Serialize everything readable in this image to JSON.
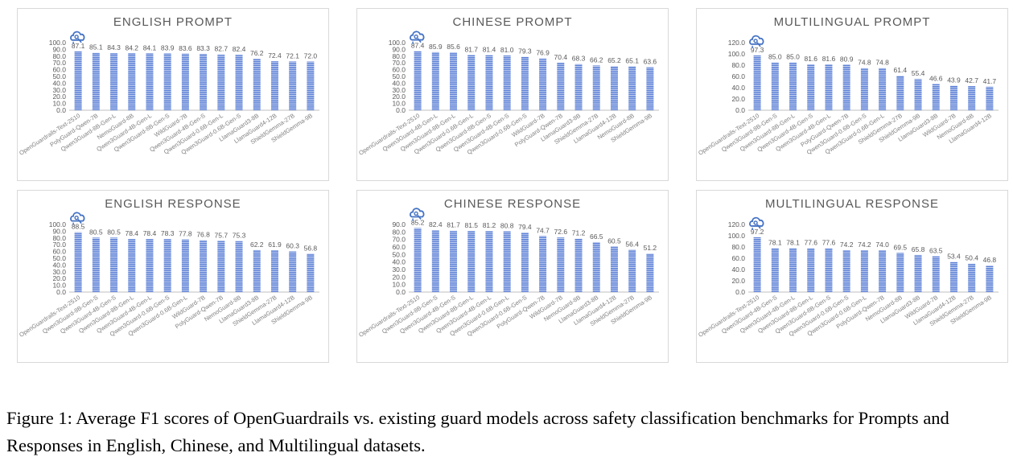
{
  "colors": {
    "bar": "#5B7FD6",
    "bar_stripe": "#ffffff",
    "axis": "#bfbfbf",
    "text": "#595959",
    "label": "#7f7f7f",
    "logo": "#4472C4"
  },
  "logo_icon": "opengardrails-logo-icon",
  "caption": "Figure 1: Average F1 scores of OpenGuardrails vs. existing guard models across safety classification benchmarks for Prompts and Responses in English, Chinese, and Multilingual datasets.",
  "chart_data": [
    {
      "type": "bar",
      "title": "ENGLISH PROMPT",
      "ylim": [
        0,
        100
      ],
      "yticks": [
        "100.0",
        "90.0",
        "80.0",
        "70.0",
        "60.0",
        "50.0",
        "40.0",
        "30.0",
        "20.0",
        "10.0",
        "0.0"
      ],
      "categories": [
        "OpenGuardrails-Text-2510",
        "PolyGuard-Qwen-7B",
        "Qwen3Guard-8B-Gen-L",
        "NemoGuard-8B",
        "Qwen3Guard-4B-Gen-L",
        "Qwen3Guard-8B-Gen-S",
        "WildGuard-7B",
        "Qwen3Guard-4B-Gen-S",
        "Qwen3Guard-0.6B-Gen-L",
        "Qwen3Guard-0.6B-Gen-S",
        "LlamaGuard3-8B",
        "LlamaGuard4-12B",
        "ShieldGemma-27B",
        "ShieldGemma-9B"
      ],
      "values": [
        87.1,
        85.1,
        84.3,
        84.2,
        84.1,
        83.9,
        83.6,
        83.3,
        82.7,
        82.4,
        76.2,
        72.4,
        72.1,
        72.0
      ],
      "labels": [
        "87.1",
        "85.1",
        "84.3",
        "84.2",
        "84.1",
        "83.9",
        "83.6",
        "83.3",
        "82.7",
        "82.4",
        "76.2",
        "72.4",
        "72.1",
        "72.0"
      ]
    },
    {
      "type": "bar",
      "title": "CHINESE PROMPT",
      "ylim": [
        0,
        100
      ],
      "yticks": [
        "100.0",
        "90.0",
        "80.0",
        "70.0",
        "60.0",
        "50.0",
        "40.0",
        "30.0",
        "20.0",
        "10.0",
        "0.0"
      ],
      "categories": [
        "OpenGuardrails-Text-2510",
        "Qwen3Guard-4B-Gen-L",
        "Qwen3Guard-8B-Gen-L",
        "Qwen3Guard-0.6B-Gen-L",
        "Qwen3Guard-8B-Gen-S",
        "Qwen3Guard-4B-Gen-S",
        "Qwen3Guard-0.6B-Gen-S",
        "WildGuard-7B",
        "PolyGuard-Qwen-7B",
        "LlamaGuard3-8B",
        "ShieldGemma-27B",
        "LlamaGuard4-12B",
        "NemoGuard-8B",
        "ShieldGemma-9B"
      ],
      "values": [
        87.4,
        85.9,
        85.6,
        81.7,
        81.4,
        81.0,
        79.3,
        76.9,
        70.4,
        68.3,
        66.2,
        65.2,
        65.1,
        63.6
      ],
      "labels": [
        "87.4",
        "85.9",
        "85.6",
        "81.7",
        "81.4",
        "81.0",
        "79.3",
        "76.9",
        "70.4",
        "68.3",
        "66.2",
        "65.2",
        "65.1",
        "63.6"
      ]
    },
    {
      "type": "bar",
      "title": "MULTILINGUAL PROMPT",
      "ylim": [
        0,
        120
      ],
      "yticks": [
        "120.0",
        "100.0",
        "80.0",
        "60.0",
        "40.0",
        "20.0",
        "0.0"
      ],
      "categories": [
        "OpenGuardrails-Text-2510",
        "Qwen3Guard-8B-Gen-S",
        "Qwen3Guard-8B-Gen-L",
        "Qwen3Guard-4B-Gen-S",
        "Qwen3Guard-4B-Gen-L",
        "PolyGuard-Qwen-7B",
        "Qwen3Guard-0.6B-Gen-S",
        "Qwen3Guard-0.6B-Gen-L",
        "ShieldGemma-27B",
        "ShieldGemma-9B",
        "LlamaGuard3-8B",
        "WildGuard-7B",
        "NemoGuard-8B",
        "LlamaGuard4-12B"
      ],
      "values": [
        97.3,
        85.0,
        85.0,
        81.6,
        81.6,
        80.9,
        74.8,
        74.8,
        61.4,
        55.4,
        46.6,
        43.9,
        42.7,
        41.7
      ],
      "labels": [
        "97.3",
        "85.0",
        "85.0",
        "81.6",
        "81.6",
        "80.9",
        "74.8",
        "74.8",
        "61.4",
        "55.4",
        "46.6",
        "43.9",
        "42.7",
        "41.7"
      ]
    },
    {
      "type": "bar",
      "title": "ENGLISH RESPONSE",
      "ylim": [
        0,
        100
      ],
      "yticks": [
        "100.0",
        "90.0",
        "80.0",
        "70.0",
        "60.0",
        "50.0",
        "40.0",
        "30.0",
        "20.0",
        "10.0",
        "0.0"
      ],
      "categories": [
        "OpenGuardrails-Text-2510",
        "Qwen3Guard-8B-Gen-S",
        "Qwen3Guard-4B-Gen-S",
        "Qwen3Guard-8B-Gen-L",
        "Qwen3Guard-4B-Gen-L",
        "Qwen3Guard-0.6B-Gen-S",
        "Qwen3Guard-0.6B-Gen-L",
        "WildGuard-7B",
        "PolyGuard-Qwen-7B",
        "NemoGuard-8B",
        "LlamaGuard3-8B",
        "ShieldGemma-27B",
        "LlamaGuard4-12B",
        "ShieldGemma-9B"
      ],
      "values": [
        88.5,
        80.5,
        80.5,
        78.4,
        78.4,
        78.3,
        77.8,
        76.8,
        75.7,
        75.3,
        62.2,
        61.9,
        60.3,
        56.8
      ],
      "labels": [
        "88.5",
        "80.5",
        "80.5",
        "78.4",
        "78.4",
        "78.3",
        "77.8",
        "76.8",
        "75.7",
        "75.3",
        "62.2",
        "61.9",
        "60.3",
        "56.8"
      ]
    },
    {
      "type": "bar",
      "title": "CHINESE RESPONSE",
      "ylim": [
        0,
        90
      ],
      "yticks": [
        "90.0",
        "80.0",
        "70.0",
        "60.0",
        "50.0",
        "40.0",
        "30.0",
        "20.0",
        "10.0",
        "0.0"
      ],
      "categories": [
        "OpenGuardrails-Text-2510",
        "Qwen3Guard-8B-Gen-S",
        "Qwen3Guard-4B-Gen-S",
        "Qwen3Guard-8B-Gen-L",
        "Qwen3Guard-4B-Gen-L",
        "Qwen3Guard-0.6B-Gen-L",
        "Qwen3Guard-0.6B-Gen-S",
        "PolyGuard-Qwen-7B",
        "WildGuard-7B",
        "NemoGuard-8B",
        "LlamaGuard3-8B",
        "LlamaGuard4-12B",
        "ShieldGemma-27B",
        "ShieldGemma-9B"
      ],
      "values": [
        85.2,
        82.4,
        81.7,
        81.5,
        81.2,
        80.8,
        79.4,
        74.7,
        72.6,
        71.2,
        66.5,
        60.5,
        56.4,
        51.2
      ],
      "labels": [
        "85.2",
        "82.4",
        "81.7",
        "81.5",
        "81.2",
        "80.8",
        "79.4",
        "74.7",
        "72.6",
        "71.2",
        "66.5",
        "60.5",
        "56.4",
        "51.2"
      ]
    },
    {
      "type": "bar",
      "title": "MULTILINGUAL RESPONSE",
      "ylim": [
        0,
        120
      ],
      "yticks": [
        "120.0",
        "100.0",
        "80.0",
        "60.0",
        "40.0",
        "20.0",
        "0.0"
      ],
      "categories": [
        "OpenGuardrails-Text-2510",
        "Qwen3Guard-4B-Gen-S",
        "Qwen3Guard-4B-Gen-L",
        "Qwen3Guard-8B-Gen-L",
        "Qwen3Guard-8B-Gen-S",
        "Qwen3Guard-0.6B-Gen-S",
        "Qwen3Guard-0.6B-Gen-L",
        "PolyGuard-Qwen-7B",
        "NemoGuard-8B",
        "LlamaGuard3-8B",
        "WildGuard-7B",
        "LlamaGuard4-12B",
        "ShieldGemma-27B",
        "ShieldGemma-9B"
      ],
      "values": [
        97.2,
        78.1,
        78.1,
        77.6,
        77.6,
        74.2,
        74.2,
        74.0,
        69.5,
        65.8,
        63.5,
        53.4,
        50.4,
        46.8
      ],
      "labels": [
        "97.2",
        "78.1",
        "78.1",
        "77.6",
        "77.6",
        "74.2",
        "74.2",
        "74.0",
        "69.5",
        "65.8",
        "63.5",
        "53.4",
        "50.4",
        "46.8"
      ]
    }
  ]
}
